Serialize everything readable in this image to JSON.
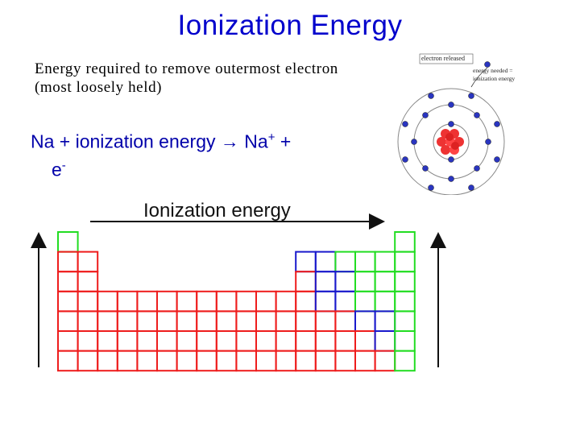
{
  "slide": {
    "title": "Ionization Energy",
    "definition": "Energy required to remove outermost electron (most loosely held)",
    "equation": {
      "prefix": "Na + ionization energy → Na",
      "charge": "+",
      "suffix": " +",
      "electron": "e",
      "electron_charge": "-"
    }
  },
  "atom_diagram": {
    "label_released": "electron released",
    "label_energy_line1": "energy needed =",
    "label_energy_line2": "ionization energy"
  },
  "periodic_table": {
    "label": "Ionization energy",
    "colors": {
      "metals": "#ee1c1c",
      "metalloids": "#1a1acc",
      "nonmetals": "#22dd22"
    }
  }
}
